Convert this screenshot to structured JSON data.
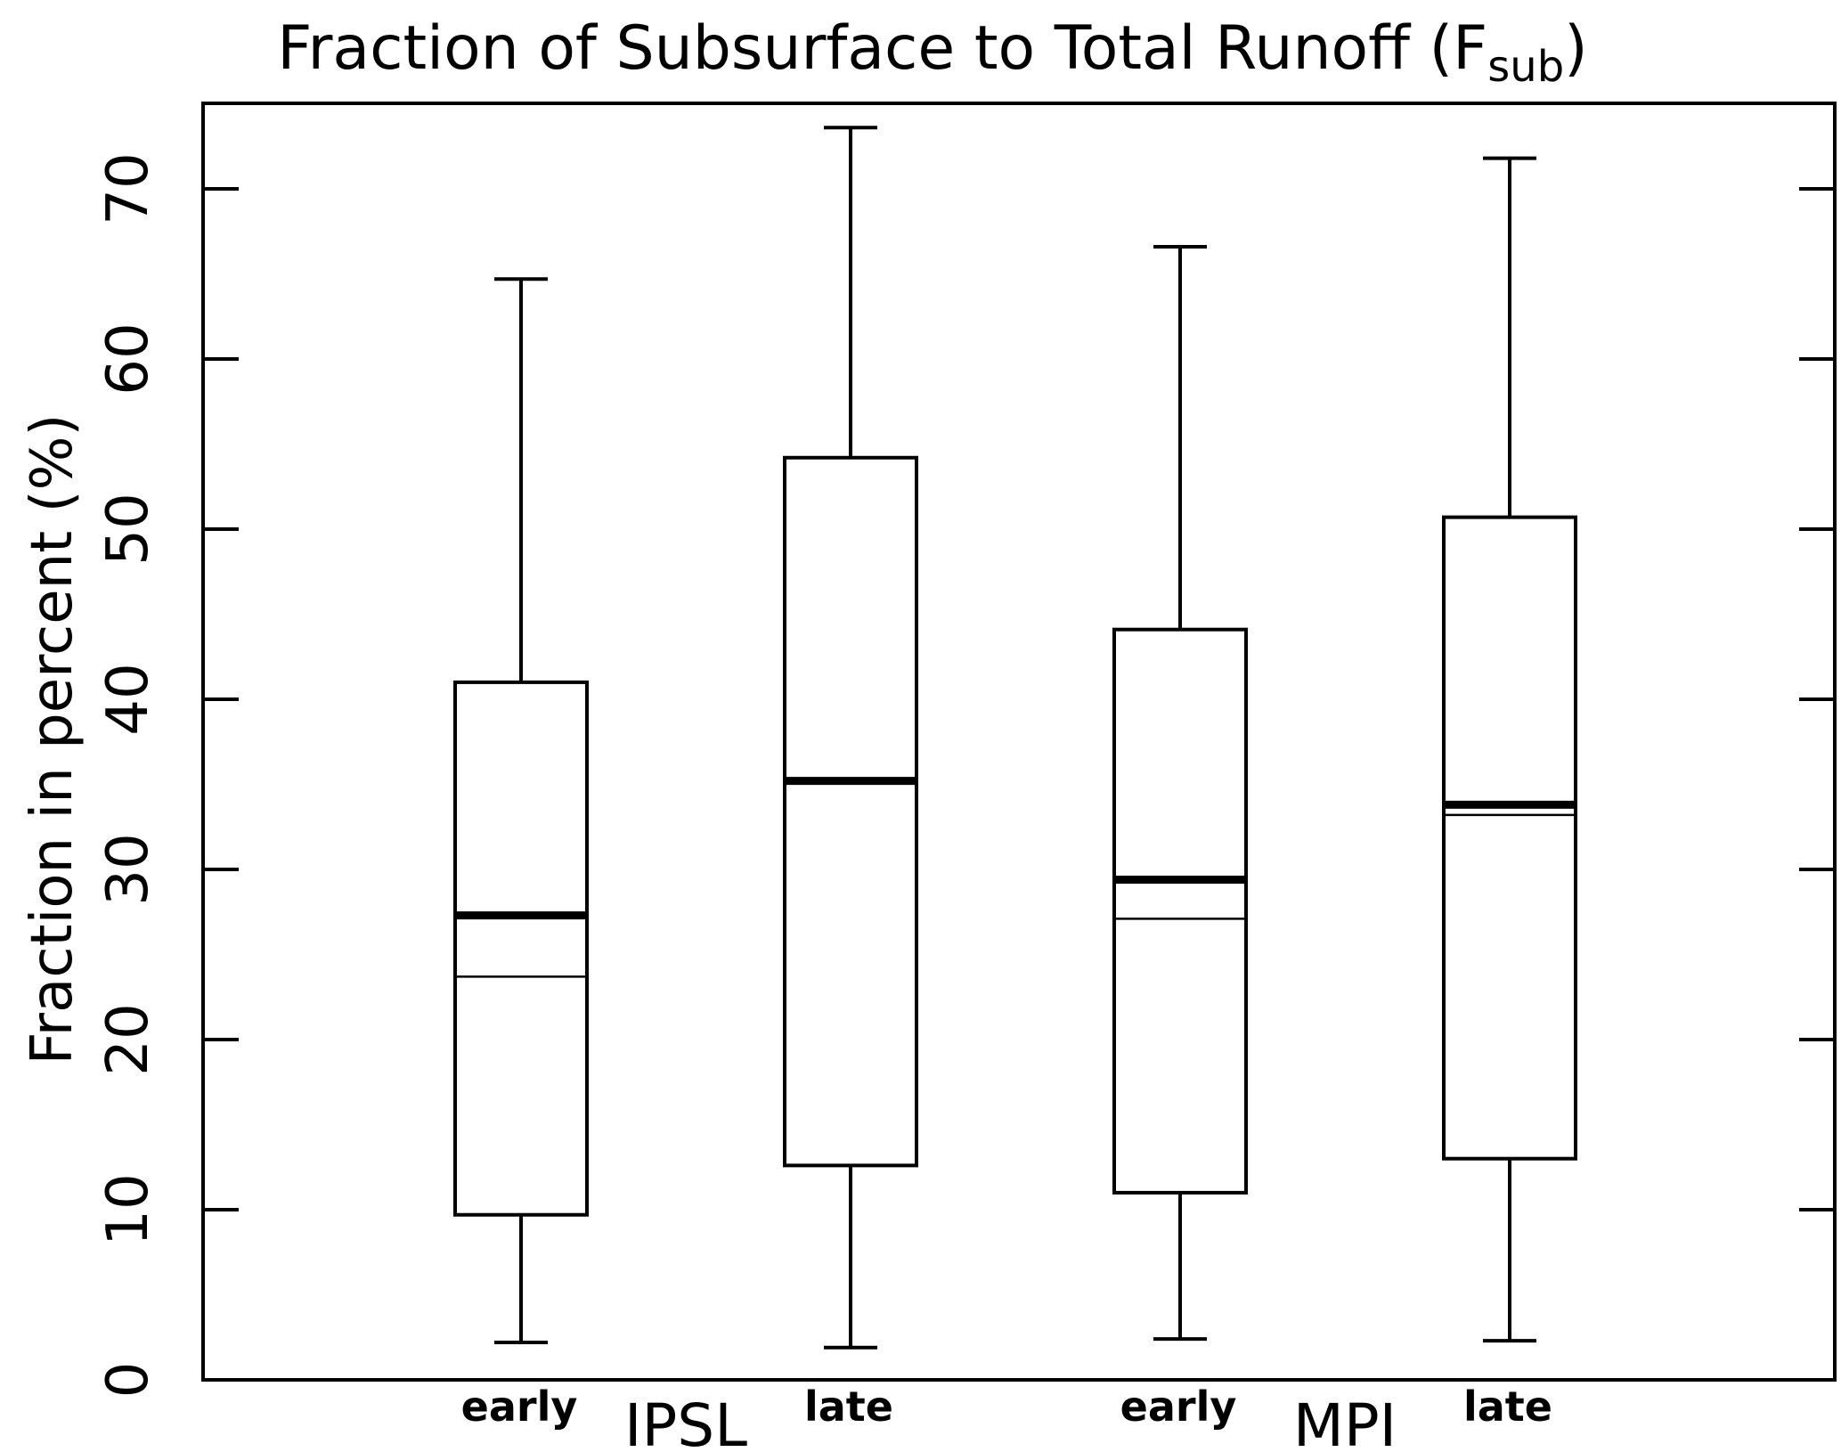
{
  "chart_data": {
    "type": "box",
    "title": {
      "main": "Fraction of Subsurface to Total Runoff (F",
      "subscript": "sub",
      "close": ")"
    },
    "ylabel": "Fraction in percent (%)",
    "xlabel": "",
    "ylim": [
      0,
      75
    ],
    "yticks": [
      0,
      10,
      20,
      30,
      40,
      50,
      60,
      70
    ],
    "grid": false,
    "groups": [
      {
        "name": "IPSL",
        "boxes": [
          {
            "label": "early",
            "whisker_low": 2.2,
            "q1": 9.7,
            "median": 27.3,
            "mean": 23.7,
            "q3": 41.0,
            "whisker_high": 64.7
          },
          {
            "label": "late",
            "whisker_low": 1.9,
            "q1": 12.6,
            "median": 35.2,
            "mean": 35.2,
            "q3": 54.2,
            "whisker_high": 73.6
          }
        ]
      },
      {
        "name": "MPI",
        "boxes": [
          {
            "label": "early",
            "whisker_low": 2.4,
            "q1": 11.0,
            "median": 29.4,
            "mean": 27.1,
            "q3": 44.1,
            "whisker_high": 66.6
          },
          {
            "label": "late",
            "whisker_low": 2.3,
            "q1": 13.0,
            "median": 33.8,
            "mean": 33.2,
            "q3": 50.7,
            "whisker_high": 71.8
          }
        ]
      }
    ]
  }
}
